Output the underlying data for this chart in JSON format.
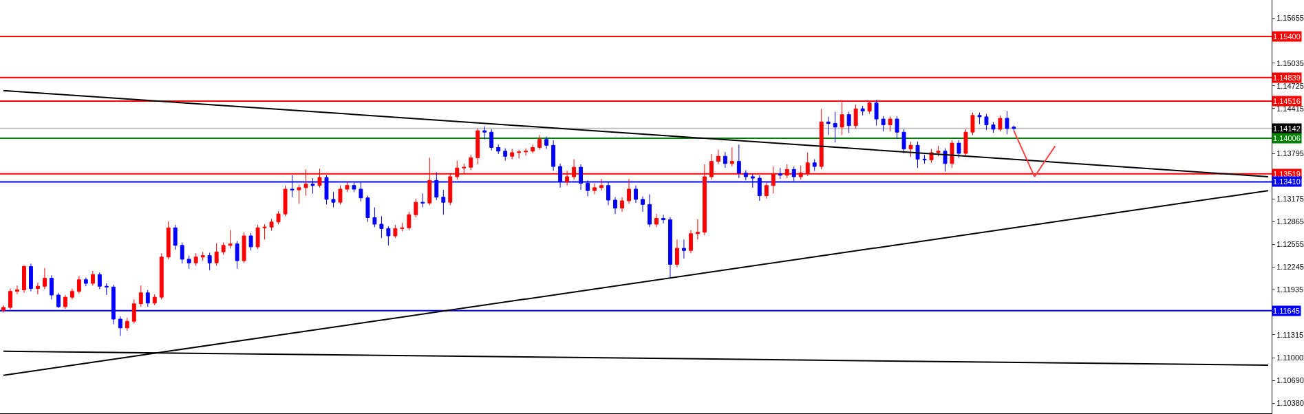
{
  "chart_data": {
    "type": "candlestick",
    "categories": [
      null,
      null,
      null,
      null,
      null,
      null,
      null,
      null,
      null,
      null,
      null,
      null,
      null,
      null,
      null,
      null,
      null,
      null,
      null,
      null,
      null,
      null,
      null,
      null,
      null,
      null,
      null,
      null,
      null,
      null,
      null,
      null,
      null,
      null,
      null,
      null,
      null,
      null,
      null,
      null,
      null,
      null,
      null,
      null,
      null,
      null,
      null,
      null,
      null,
      null,
      null,
      null,
      null,
      null,
      null,
      null,
      null,
      null,
      null,
      null,
      null,
      null,
      null,
      null,
      null,
      null,
      null,
      null,
      null,
      null,
      null,
      null,
      null,
      null,
      null,
      null,
      null,
      null,
      null,
      null,
      null,
      null,
      null,
      null,
      null,
      null,
      null,
      null,
      null,
      null,
      null,
      null,
      null,
      null,
      null,
      null,
      null,
      null,
      null,
      null,
      null,
      null,
      null,
      null,
      null,
      null,
      null,
      null,
      null,
      null,
      null,
      null,
      null,
      null,
      null,
      null,
      null,
      null,
      null,
      null,
      null,
      null,
      null,
      null,
      null,
      null,
      null,
      null,
      null,
      null,
      null,
      null,
      null,
      null,
      null,
      null,
      null,
      null,
      null,
      null,
      null,
      null,
      null,
      null,
      null,
      null,
      null,
      null,
      null,
      null,
      null,
      null,
      null,
      null,
      null,
      null,
      null,
      null,
      null,
      null,
      null,
      null,
      null,
      null,
      null,
      null,
      null,
      null,
      null,
      null,
      null,
      null,
      null,
      null,
      null,
      null,
      null,
      null,
      null,
      null,
      null,
      null,
      null,
      null,
      null
    ],
    "ohlc": [
      [
        1.1165,
        1.1172,
        1.1162,
        1.1169
      ],
      [
        1.1169,
        1.1195,
        1.1166,
        1.1191
      ],
      [
        1.1191,
        1.1199,
        1.1187,
        1.1193
      ],
      [
        1.1193,
        1.1227,
        1.1189,
        1.1225
      ],
      [
        1.1225,
        1.1229,
        1.1191,
        1.1195
      ],
      [
        1.1195,
        1.1203,
        1.1187,
        1.1198
      ],
      [
        1.1198,
        1.1223,
        1.1194,
        1.1209
      ],
      [
        1.1209,
        1.1213,
        1.118,
        1.1186
      ],
      [
        1.1186,
        1.1189,
        1.1168,
        1.117
      ],
      [
        1.117,
        1.1186,
        1.1167,
        1.1183
      ],
      [
        1.1183,
        1.1195,
        1.118,
        1.1191
      ],
      [
        1.1191,
        1.1212,
        1.1188,
        1.1207
      ],
      [
        1.1207,
        1.121,
        1.1198,
        1.1202
      ],
      [
        1.1202,
        1.1219,
        1.1199,
        1.1214
      ],
      [
        1.1214,
        1.1217,
        1.1194,
        1.1198
      ],
      [
        1.1198,
        1.1202,
        1.1186,
        1.1197
      ],
      [
        1.1197,
        1.12,
        1.1146,
        1.1153
      ],
      [
        1.1153,
        1.1157,
        1.113,
        1.1141
      ],
      [
        1.1141,
        1.1155,
        1.1137,
        1.115
      ],
      [
        1.115,
        1.118,
        1.1147,
        1.1174
      ],
      [
        1.1174,
        1.1199,
        1.117,
        1.1189
      ],
      [
        1.1189,
        1.1193,
        1.117,
        1.1175
      ],
      [
        1.1175,
        1.1187,
        1.1172,
        1.1183
      ],
      [
        1.1183,
        1.1243,
        1.118,
        1.1238
      ],
      [
        1.1238,
        1.1287,
        1.1235,
        1.1278
      ],
      [
        1.1278,
        1.1282,
        1.1248,
        1.1254
      ],
      [
        1.1254,
        1.1258,
        1.1229,
        1.1235
      ],
      [
        1.1235,
        1.124,
        1.1222,
        1.123
      ],
      [
        1.123,
        1.1243,
        1.1226,
        1.1238
      ],
      [
        1.1238,
        1.1245,
        1.1233,
        1.124
      ],
      [
        1.124,
        1.1244,
        1.122,
        1.123
      ],
      [
        1.123,
        1.1257,
        1.1226,
        1.1245
      ],
      [
        1.1245,
        1.1258,
        1.1241,
        1.1254
      ],
      [
        1.1254,
        1.1275,
        1.125,
        1.1256
      ],
      [
        1.1256,
        1.126,
        1.1222,
        1.1233
      ],
      [
        1.1233,
        1.1272,
        1.123,
        1.1267
      ],
      [
        1.1267,
        1.1271,
        1.1247,
        1.1252
      ],
      [
        1.1252,
        1.1282,
        1.1249,
        1.1278
      ],
      [
        1.1278,
        1.1283,
        1.1262,
        1.1279
      ],
      [
        1.1279,
        1.129,
        1.1274,
        1.1286
      ],
      [
        1.1286,
        1.1301,
        1.1283,
        1.1297
      ],
      [
        1.1297,
        1.1336,
        1.1294,
        1.1331
      ],
      [
        1.1331,
        1.135,
        1.132,
        1.133
      ],
      [
        1.133,
        1.1337,
        1.1311,
        1.1333
      ],
      [
        1.1333,
        1.1358,
        1.1322,
        1.1338
      ],
      [
        1.1338,
        1.1346,
        1.1325,
        1.1336
      ],
      [
        1.1336,
        1.1359,
        1.1333,
        1.1347
      ],
      [
        1.1347,
        1.135,
        1.131,
        1.1317
      ],
      [
        1.1317,
        1.1327,
        1.1306,
        1.1313
      ],
      [
        1.1313,
        1.1336,
        1.131,
        1.1331
      ],
      [
        1.1331,
        1.1341,
        1.1327,
        1.1336
      ],
      [
        1.1336,
        1.134,
        1.1327,
        1.1331
      ],
      [
        1.1331,
        1.1341,
        1.1314,
        1.1319
      ],
      [
        1.1319,
        1.1322,
        1.1286,
        1.1292
      ],
      [
        1.1292,
        1.1306,
        1.1279,
        1.1283
      ],
      [
        1.1283,
        1.1294,
        1.1264,
        1.1277
      ],
      [
        1.1277,
        1.128,
        1.1254,
        1.1267
      ],
      [
        1.1267,
        1.1282,
        1.1264,
        1.1277
      ],
      [
        1.1277,
        1.1285,
        1.1273,
        1.1278
      ],
      [
        1.1278,
        1.13,
        1.1275,
        1.1296
      ],
      [
        1.1296,
        1.1318,
        1.1292,
        1.1313
      ],
      [
        1.1313,
        1.1325,
        1.1306,
        1.1312
      ],
      [
        1.1312,
        1.1374,
        1.1309,
        1.1343
      ],
      [
        1.1343,
        1.1354,
        1.1316,
        1.132
      ],
      [
        1.132,
        1.133,
        1.1296,
        1.1313
      ],
      [
        1.1313,
        1.1352,
        1.1309,
        1.1348
      ],
      [
        1.1348,
        1.137,
        1.1344,
        1.136
      ],
      [
        1.136,
        1.1366,
        1.1352,
        1.1361
      ],
      [
        1.1361,
        1.1378,
        1.1357,
        1.1374
      ],
      [
        1.1374,
        1.1414,
        1.1365,
        1.1411
      ],
      [
        1.1411,
        1.1417,
        1.1399,
        1.1409
      ],
      [
        1.1409,
        1.1413,
        1.1384,
        1.1388
      ],
      [
        1.1388,
        1.1392,
        1.1379,
        1.1383
      ],
      [
        1.1383,
        1.1387,
        1.137,
        1.1376
      ],
      [
        1.1376,
        1.1386,
        1.1372,
        1.1381
      ],
      [
        1.1381,
        1.1385,
        1.1373,
        1.1382
      ],
      [
        1.1382,
        1.1387,
        1.1377,
        1.1383
      ],
      [
        1.1383,
        1.1392,
        1.138,
        1.1388
      ],
      [
        1.1388,
        1.1405,
        1.1385,
        1.1399
      ],
      [
        1.1399,
        1.1403,
        1.1386,
        1.1391
      ],
      [
        1.1391,
        1.1398,
        1.1356,
        1.1362
      ],
      [
        1.1362,
        1.1366,
        1.1333,
        1.1341
      ],
      [
        1.1341,
        1.1356,
        1.1336,
        1.1348
      ],
      [
        1.1348,
        1.1372,
        1.1344,
        1.1361
      ],
      [
        1.1361,
        1.1365,
        1.133,
        1.1339
      ],
      [
        1.1339,
        1.1343,
        1.1321,
        1.1329
      ],
      [
        1.1329,
        1.1339,
        1.1324,
        1.1333
      ],
      [
        1.1333,
        1.1345,
        1.1329,
        1.1336
      ],
      [
        1.1336,
        1.1341,
        1.1309,
        1.1316
      ],
      [
        1.1316,
        1.132,
        1.1297,
        1.1305
      ],
      [
        1.1305,
        1.132,
        1.13,
        1.1315
      ],
      [
        1.1315,
        1.1345,
        1.1311,
        1.1331
      ],
      [
        1.1331,
        1.1336,
        1.1312,
        1.1317
      ],
      [
        1.1317,
        1.1321,
        1.13,
        1.131
      ],
      [
        1.131,
        1.1324,
        1.1279,
        1.1283
      ],
      [
        1.1283,
        1.1297,
        1.1279,
        1.1291
      ],
      [
        1.1291,
        1.1296,
        1.1284,
        1.1289
      ],
      [
        1.1289,
        1.1293,
        1.1209,
        1.1228
      ],
      [
        1.1228,
        1.1262,
        1.1224,
        1.125
      ],
      [
        1.125,
        1.1262,
        1.1236,
        1.1247
      ],
      [
        1.1247,
        1.1275,
        1.1243,
        1.127
      ],
      [
        1.127,
        1.129,
        1.1262,
        1.1272
      ],
      [
        1.1272,
        1.1365,
        1.1268,
        1.1348
      ],
      [
        1.1348,
        1.1379,
        1.1344,
        1.1369
      ],
      [
        1.1369,
        1.1385,
        1.1365,
        1.1376
      ],
      [
        1.1376,
        1.1382,
        1.136,
        1.1366
      ],
      [
        1.1366,
        1.1388,
        1.1362,
        1.1369
      ],
      [
        1.1369,
        1.1392,
        1.1346,
        1.1353
      ],
      [
        1.1353,
        1.1357,
        1.1343,
        1.1348
      ],
      [
        1.1348,
        1.1352,
        1.1333,
        1.1346
      ],
      [
        1.1346,
        1.135,
        1.1315,
        1.1322
      ],
      [
        1.1322,
        1.134,
        1.1318,
        1.1336
      ],
      [
        1.1336,
        1.1362,
        1.1325,
        1.1352
      ],
      [
        1.1352,
        1.136,
        1.1345,
        1.135
      ],
      [
        1.135,
        1.1365,
        1.1346,
        1.1358
      ],
      [
        1.1358,
        1.1362,
        1.1342,
        1.1348
      ],
      [
        1.1348,
        1.1363,
        1.1344,
        1.1353
      ],
      [
        1.1353,
        1.1381,
        1.1349,
        1.1367
      ],
      [
        1.1367,
        1.1372,
        1.1356,
        1.1362
      ],
      [
        1.1362,
        1.1441,
        1.1358,
        1.1423
      ],
      [
        1.1423,
        1.143,
        1.1405,
        1.1421
      ],
      [
        1.1421,
        1.1437,
        1.1395,
        1.1416
      ],
      [
        1.1416,
        1.145,
        1.1405,
        1.1433
      ],
      [
        1.1433,
        1.1437,
        1.1408,
        1.1418
      ],
      [
        1.1418,
        1.1447,
        1.1414,
        1.1441
      ],
      [
        1.1441,
        1.1445,
        1.1432,
        1.1438
      ],
      [
        1.1438,
        1.1452,
        1.1434,
        1.1449
      ],
      [
        1.1449,
        1.1453,
        1.1418,
        1.1427
      ],
      [
        1.1427,
        1.1431,
        1.141,
        1.1419
      ],
      [
        1.1419,
        1.1431,
        1.141,
        1.1427
      ],
      [
        1.1427,
        1.1431,
        1.14,
        1.1409
      ],
      [
        1.1409,
        1.1413,
        1.138,
        1.1386
      ],
      [
        1.1386,
        1.1396,
        1.1375,
        1.1391
      ],
      [
        1.1391,
        1.1396,
        1.136,
        1.1372
      ],
      [
        1.1372,
        1.1378,
        1.1366,
        1.1371
      ],
      [
        1.1371,
        1.1386,
        1.1367,
        1.1381
      ],
      [
        1.1381,
        1.139,
        1.1376,
        1.1383
      ],
      [
        1.1383,
        1.1387,
        1.1355,
        1.1366
      ],
      [
        1.1366,
        1.1398,
        1.136,
        1.1394
      ],
      [
        1.1394,
        1.1398,
        1.1374,
        1.138
      ],
      [
        1.138,
        1.1413,
        1.1376,
        1.1409
      ],
      [
        1.1409,
        1.1436,
        1.1405,
        1.1432
      ],
      [
        1.1432,
        1.1436,
        1.142,
        1.143
      ],
      [
        1.143,
        1.1434,
        1.1412,
        1.1419
      ],
      [
        1.1419,
        1.1423,
        1.1408,
        1.1413
      ],
      [
        1.1413,
        1.1432,
        1.141,
        1.1428
      ],
      [
        1.1428,
        1.1438,
        1.1406,
        1.1414
      ],
      [
        1.1416,
        1.1418,
        1.1411,
        1.1414
      ],
      null,
      null,
      null,
      null,
      null,
      null,
      null,
      null,
      null,
      null,
      null,
      null,
      null,
      null,
      null,
      null,
      null,
      null,
      null,
      null,
      null,
      null,
      null,
      null,
      null,
      null,
      null,
      null,
      null,
      null,
      null,
      null,
      null,
      null,
      null,
      null,
      null
    ],
    "colors": [
      "#ff0000",
      "#ff0000",
      "#ff0000",
      "#ff0000",
      "#0000ff",
      "#ff0000",
      "#ff0000",
      "#0000ff",
      "#0000ff",
      "#ff0000",
      "#ff0000",
      "#ff0000",
      "#0000ff",
      "#ff0000",
      "#0000ff",
      "#0000ff",
      "#0000ff",
      "#0000ff",
      "#ff0000",
      "#ff0000",
      "#ff0000",
      "#0000ff",
      "#ff0000",
      "#ff0000",
      "#ff0000",
      "#0000ff",
      "#0000ff",
      "#0000ff",
      "#ff0000",
      "#ff0000",
      "#0000ff",
      "#ff0000",
      "#ff0000",
      "#ff0000",
      "#0000ff",
      "#ff0000",
      "#0000ff",
      "#ff0000",
      "#ff0000",
      "#ff0000",
      "#ff0000",
      "#ff0000",
      "#0000ff",
      "#ff0000",
      "#ff0000",
      "#0000ff",
      "#ff0000",
      "#0000ff",
      "#0000ff",
      "#ff0000",
      "#ff0000",
      "#0000ff",
      "#0000ff",
      "#0000ff",
      "#0000ff",
      "#0000ff",
      "#0000ff",
      "#ff0000",
      "#ff0000",
      "#ff0000",
      "#ff0000",
      "#0000ff",
      "#ff0000",
      "#0000ff",
      "#0000ff",
      "#ff0000",
      "#ff0000",
      "#ff0000",
      "#ff0000",
      "#ff0000",
      "#0000ff",
      "#0000ff",
      "#0000ff",
      "#0000ff",
      "#ff0000",
      "#ff0000",
      "#ff0000",
      "#ff0000",
      "#ff0000",
      "#0000ff",
      "#0000ff",
      "#0000ff",
      "#ff0000",
      "#ff0000",
      "#0000ff",
      "#0000ff",
      "#ff0000",
      "#ff0000",
      "#0000ff",
      "#0000ff",
      "#ff0000",
      "#ff0000",
      "#0000ff",
      "#0000ff",
      "#0000ff",
      "#ff0000",
      "#0000ff",
      "#0000ff",
      "#ff0000",
      "#0000ff",
      "#ff0000",
      "#ff0000",
      "#ff0000",
      "#ff0000",
      "#ff0000",
      "#0000ff",
      "#ff0000",
      "#0000ff",
      "#0000ff",
      "#0000ff",
      "#0000ff",
      "#ff0000",
      "#ff0000",
      "#0000ff",
      "#ff0000",
      "#0000ff",
      "#ff0000",
      "#ff0000",
      "#0000ff",
      "#ff0000",
      "#0000ff",
      "#0000ff",
      "#ff0000",
      "#0000ff",
      "#ff0000",
      "#0000ff",
      "#ff0000",
      "#0000ff",
      "#0000ff",
      "#ff0000",
      "#0000ff",
      "#0000ff",
      "#ff0000",
      "#0000ff",
      "#0000ff",
      "#ff0000",
      "#ff0000",
      "#0000ff",
      "#ff0000",
      "#0000ff",
      "#ff0000",
      "#ff0000",
      "#0000ff",
      "#0000ff",
      "#0000ff",
      "#ff0000",
      "#0000ff",
      "#0000ff",
      null,
      null,
      null,
      null,
      null,
      null,
      null,
      null,
      null,
      null,
      null,
      null,
      null,
      null,
      null,
      null,
      null,
      null,
      null,
      null,
      null,
      null,
      null,
      null,
      null,
      null,
      null,
      null,
      null,
      null,
      null,
      null,
      null,
      null,
      null,
      null,
      null
    ],
    "series": [
      {
        "type": "line",
        "color": "#000000",
        "values": [
          1.1466,
          null,
          null,
          null,
          null,
          null,
          null,
          null,
          null,
          null,
          null,
          null,
          null,
          null,
          null,
          null,
          null,
          null,
          null,
          null,
          null,
          null,
          null,
          null,
          null,
          null,
          null,
          null,
          null,
          null,
          null,
          null,
          null,
          null,
          null,
          null,
          null,
          null,
          null,
          null,
          null,
          null,
          null,
          null,
          null,
          null,
          null,
          null,
          null,
          null,
          null,
          null,
          null,
          null,
          null,
          null,
          null,
          null,
          null,
          null,
          null,
          null,
          null,
          null,
          null,
          null,
          null,
          null,
          null,
          null,
          null,
          null,
          null,
          null,
          null,
          null,
          null,
          null,
          null,
          null,
          null,
          null,
          null,
          null,
          null,
          null,
          null,
          null,
          null,
          null,
          null,
          null,
          null,
          null,
          null,
          null,
          null,
          null,
          null,
          null,
          null,
          null,
          null,
          null,
          null,
          null,
          null,
          null,
          null,
          null,
          null,
          null,
          null,
          null,
          null,
          null,
          null,
          null,
          null,
          null,
          null,
          null,
          null,
          null,
          null,
          null,
          null,
          null,
          null,
          null,
          null,
          null,
          null,
          null,
          null,
          null,
          null,
          null,
          null,
          null,
          null,
          null,
          null,
          null,
          null,
          null,
          null,
          null,
          null,
          null,
          null,
          null,
          null,
          null,
          null,
          null,
          null,
          null,
          null,
          null,
          null,
          null,
          null,
          null,
          null,
          null,
          null,
          null,
          null,
          null,
          null,
          null,
          null,
          null,
          null,
          null,
          null,
          null,
          null,
          null,
          null,
          null,
          null,
          null,
          1.1348
        ]
      },
      {
        "type": "line",
        "color": "#000000",
        "values": [
          1.1076,
          null,
          null,
          null,
          null,
          null,
          null,
          null,
          null,
          null,
          null,
          null,
          null,
          null,
          null,
          null,
          null,
          null,
          null,
          null,
          null,
          null,
          null,
          null,
          null,
          null,
          null,
          null,
          null,
          null,
          null,
          null,
          null,
          null,
          null,
          null,
          null,
          null,
          null,
          null,
          null,
          null,
          null,
          null,
          null,
          null,
          null,
          null,
          null,
          null,
          null,
          null,
          null,
          null,
          null,
          null,
          null,
          null,
          null,
          null,
          null,
          null,
          null,
          null,
          null,
          null,
          null,
          null,
          null,
          null,
          null,
          null,
          null,
          null,
          null,
          null,
          null,
          null,
          null,
          null,
          null,
          null,
          null,
          null,
          null,
          null,
          null,
          null,
          null,
          null,
          null,
          null,
          null,
          null,
          null,
          null,
          null,
          null,
          null,
          null,
          null,
          null,
          null,
          null,
          null,
          null,
          null,
          null,
          null,
          null,
          null,
          null,
          null,
          null,
          null,
          null,
          null,
          null,
          null,
          null,
          null,
          null,
          null,
          null,
          null,
          null,
          null,
          null,
          null,
          null,
          null,
          null,
          null,
          null,
          null,
          null,
          null,
          null,
          null,
          null,
          null,
          null,
          null,
          null,
          null,
          null,
          null,
          null,
          null,
          null,
          null,
          null,
          null,
          null,
          null,
          null,
          null,
          null,
          null,
          null,
          null,
          null,
          null,
          null,
          null,
          null,
          null,
          null,
          null,
          null,
          null,
          null,
          null,
          null,
          null,
          null,
          null,
          null,
          null,
          null,
          null,
          null,
          null,
          null,
          1.1329
        ]
      },
      {
        "type": "line",
        "color": "#000000",
        "values": [
          1.1109,
          null,
          null,
          null,
          null,
          null,
          null,
          null,
          null,
          null,
          null,
          null,
          null,
          null,
          null,
          null,
          null,
          null,
          null,
          null,
          null,
          null,
          null,
          null,
          null,
          null,
          null,
          null,
          null,
          null,
          null,
          null,
          null,
          null,
          null,
          null,
          null,
          null,
          null,
          null,
          null,
          null,
          null,
          null,
          null,
          null,
          null,
          null,
          null,
          null,
          null,
          null,
          null,
          null,
          null,
          null,
          null,
          null,
          null,
          null,
          null,
          null,
          null,
          null,
          null,
          null,
          null,
          null,
          null,
          null,
          null,
          null,
          null,
          null,
          null,
          null,
          null,
          null,
          null,
          null,
          null,
          null,
          null,
          null,
          null,
          null,
          null,
          null,
          null,
          null,
          null,
          null,
          null,
          null,
          null,
          null,
          null,
          null,
          null,
          null,
          null,
          null,
          null,
          null,
          null,
          null,
          null,
          null,
          null,
          null,
          null,
          null,
          null,
          null,
          null,
          null,
          null,
          null,
          null,
          null,
          null,
          null,
          null,
          null,
          null,
          null,
          null,
          null,
          null,
          null,
          null,
          null,
          null,
          null,
          null,
          null,
          null,
          null,
          null,
          null,
          null,
          null,
          null,
          null,
          null,
          null,
          null,
          null,
          null,
          null,
          null,
          null,
          null,
          null,
          null,
          null,
          null,
          null,
          null,
          null,
          null,
          null,
          null,
          null,
          null,
          null,
          null,
          null,
          null,
          null,
          null,
          null,
          null,
          null,
          null,
          null,
          null,
          null,
          null,
          null,
          null,
          null,
          null,
          null,
          1.109
        ]
      },
      {
        "type": "line",
        "color": "#ff4040",
        "values": [
          null,
          null,
          null,
          null,
          null,
          null,
          null,
          null,
          null,
          null,
          null,
          null,
          null,
          null,
          null,
          null,
          null,
          null,
          null,
          null,
          null,
          null,
          null,
          null,
          null,
          null,
          null,
          null,
          null,
          null,
          null,
          null,
          null,
          null,
          null,
          null,
          null,
          null,
          null,
          null,
          null,
          null,
          null,
          null,
          null,
          null,
          null,
          null,
          null,
          null,
          null,
          null,
          null,
          null,
          null,
          null,
          null,
          null,
          null,
          null,
          null,
          null,
          null,
          null,
          null,
          null,
          null,
          null,
          null,
          null,
          null,
          null,
          null,
          null,
          null,
          null,
          null,
          null,
          null,
          null,
          null,
          null,
          null,
          null,
          null,
          null,
          null,
          null,
          null,
          null,
          null,
          null,
          null,
          null,
          null,
          null,
          null,
          null,
          null,
          null,
          null,
          null,
          null,
          null,
          null,
          null,
          null,
          null,
          null,
          null,
          null,
          null,
          null,
          null,
          null,
          null,
          null,
          null,
          null,
          null,
          null,
          null,
          null,
          null,
          null,
          null,
          null,
          null,
          null,
          null,
          null,
          null,
          null,
          null,
          null,
          null,
          null,
          null,
          null,
          null,
          null,
          null,
          null,
          null,
          null,
          null,
          null,
          1.1411,
          null,
          null,
          1.1348,
          null,
          null,
          1.139,
          null,
          null,
          null,
          null,
          null,
          null,
          null,
          null,
          null,
          null,
          null,
          null,
          null,
          null,
          null,
          null,
          null,
          null,
          null,
          null,
          null,
          null,
          null,
          null,
          null,
          null,
          null,
          null,
          null,
          null,
          null
        ]
      }
    ],
    "ref_lines": [
      {
        "axis": "y",
        "value": 1.154,
        "label": "1.15400",
        "color": "#ff0000"
      },
      {
        "axis": "y",
        "value": 1.14839,
        "label": "1.14839",
        "color": "#ff0000"
      },
      {
        "axis": "y",
        "value": 1.14516,
        "label": "1.14516",
        "color": "#ff0000"
      },
      {
        "axis": "y",
        "value": 1.14142,
        "label": "1.14142",
        "color": "#c0c0c0"
      },
      {
        "axis": "y",
        "value": 1.14006,
        "label": "1.14006",
        "color": "#008000"
      },
      {
        "axis": "y",
        "value": 1.13519,
        "label": "1.13519",
        "color": "#ff0000"
      },
      {
        "axis": "y",
        "value": 1.1341,
        "label": "1.13410",
        "color": "#0000ff"
      },
      {
        "axis": "y",
        "value": 1.11645,
        "label": "1.11645",
        "color": "#0000ff"
      }
    ],
    "ylim": [
      1.1024,
      1.159
    ],
    "yticks": [
      {
        "value": 1.15655,
        "label": "1.15655"
      },
      {
        "value": 1.15035,
        "label": "1.15035"
      },
      {
        "value": 1.14725,
        "label": "1.14725"
      },
      {
        "value": 1.14415,
        "label": "1.14415"
      },
      {
        "value": 1.13795,
        "label": "1.13795"
      },
      {
        "value": 1.13175,
        "label": "1.13175"
      },
      {
        "value": 1.12865,
        "label": "1.12865"
      },
      {
        "value": 1.12555,
        "label": "1.12555"
      },
      {
        "value": 1.12245,
        "label": "1.12245"
      },
      {
        "value": 1.11935,
        "label": "1.11935"
      },
      {
        "value": 1.11315,
        "label": "1.11315"
      },
      {
        "value": 1.11,
        "label": "1.11000"
      },
      {
        "value": 1.1069,
        "label": "1.10690"
      },
      {
        "value": 1.1038,
        "label": "1.10380"
      }
    ],
    "tick_labels": "y"
  }
}
